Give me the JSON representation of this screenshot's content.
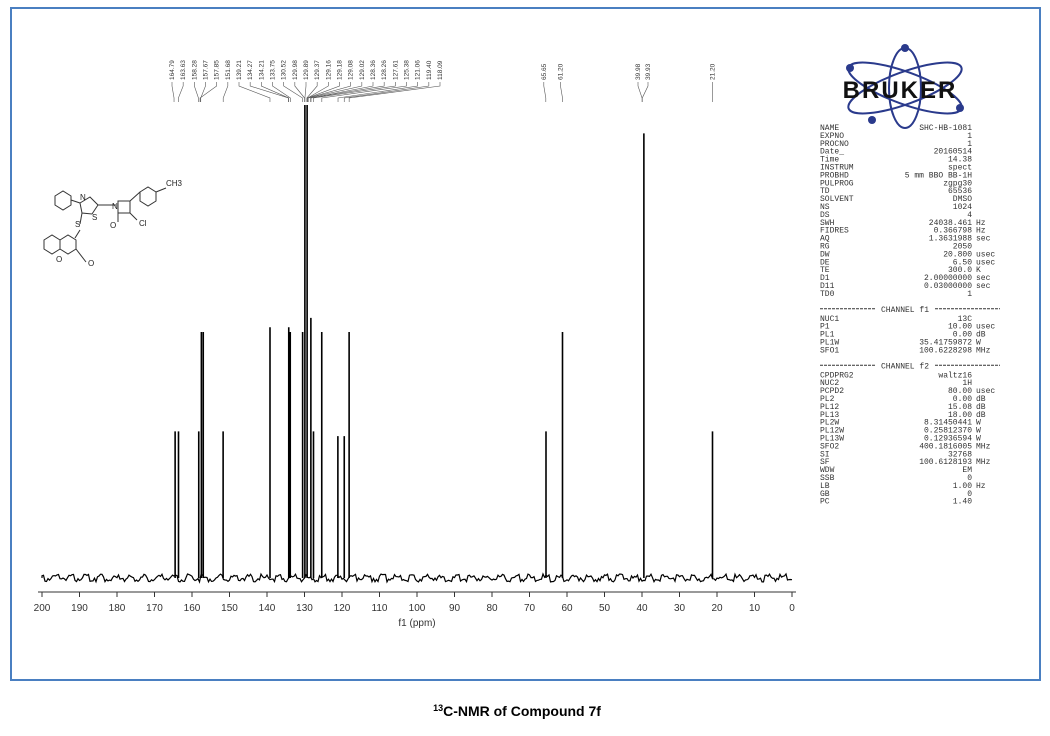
{
  "caption_sup": "13",
  "caption": "C-NMR of Compound 7f",
  "logo": "BRUKER",
  "structure_labels": [
    "N",
    "S",
    "N",
    "O",
    "Cl",
    "CH3",
    "S",
    "O",
    "O"
  ],
  "chart_data": {
    "type": "spectrum",
    "xlabel": "f1 (ppm)",
    "xlim": [
      200,
      0
    ],
    "xticks": [
      200,
      190,
      180,
      170,
      160,
      150,
      140,
      130,
      120,
      110,
      100,
      90,
      80,
      70,
      60,
      50,
      40,
      30,
      20,
      10,
      0
    ],
    "ylim": [
      0,
      100
    ],
    "color": "#000000",
    "x": [
      164.5,
      163.6,
      158.2,
      157.5,
      157.0,
      151.7,
      139.2,
      134.2,
      133.8,
      130.5,
      129.9,
      129.3,
      128.3,
      127.6,
      125.4,
      121.1,
      119.4,
      118.1,
      65.6,
      61.2,
      39.5,
      21.2
    ],
    "values": [
      31,
      31,
      31,
      52,
      52,
      31,
      53,
      53,
      52,
      52,
      100,
      100,
      55,
      31,
      52,
      30,
      30,
      52,
      31,
      52,
      94,
      31
    ],
    "peak_labels": [
      "164.79",
      "163.63",
      "158.28",
      "157.67",
      "157.85",
      "151.68",
      "139.21",
      "134.27",
      "134.21",
      "133.75",
      "130.52",
      "129.98",
      "129.89",
      "129.37",
      "129.16",
      "129.18",
      "129.08",
      "129.02",
      "128.36",
      "128.26",
      "127.61",
      "125.38",
      "121.06",
      "119.40",
      "118.09",
      "65.65",
      "61.20",
      "39.98",
      "39.93",
      "21.20"
    ]
  },
  "parameter_sections": [
    {
      "rows": [
        [
          "NAME",
          "SHC-HB-1081"
        ],
        [
          "EXPNO",
          "1"
        ],
        [
          "PROCNO",
          "1"
        ],
        [
          "Date_",
          "20160514"
        ],
        [
          "Time",
          "14.38"
        ],
        [
          "INSTRUM",
          "spect"
        ],
        [
          "PROBHD",
          "5 mm BBO BB-1H"
        ],
        [
          "PULPROG",
          "zgpg30"
        ],
        [
          "TD",
          "65536"
        ],
        [
          "SOLVENT",
          "DMSO"
        ],
        [
          "NS",
          "1024"
        ],
        [
          "DS",
          "4"
        ],
        [
          "SWH",
          "24038.461",
          "Hz"
        ],
        [
          "FIDRES",
          "0.366798",
          "Hz"
        ],
        [
          "AQ",
          "1.3631988",
          "sec"
        ],
        [
          "RG",
          "2050"
        ],
        [
          "DW",
          "20.800",
          "usec"
        ],
        [
          "DE",
          "6.50",
          "usec"
        ],
        [
          "TE",
          "300.0",
          "K"
        ],
        [
          "D1",
          "2.00000000",
          "sec"
        ],
        [
          "D11",
          "0.03000000",
          "sec"
        ],
        [
          "TD0",
          "1"
        ]
      ]
    },
    {
      "heading": "CHANNEL f1",
      "rows": [
        [
          "NUC1",
          "13C"
        ],
        [
          "P1",
          "10.00",
          "usec"
        ],
        [
          "PL1",
          "0.00",
          "dB"
        ],
        [
          "PL1W",
          "35.41759872",
          "W"
        ],
        [
          "SFO1",
          "100.6228298",
          "MHz"
        ]
      ]
    },
    {
      "heading": "CHANNEL f2",
      "rows": [
        [
          "CPDPRG2",
          "waltz16"
        ],
        [
          "NUC2",
          "1H"
        ],
        [
          "PCPD2",
          "80.00",
          "usec"
        ],
        [
          "PL2",
          "0.00",
          "dB"
        ],
        [
          "PL12",
          "15.08",
          "dB"
        ],
        [
          "PL13",
          "18.00",
          "dB"
        ],
        [
          "PL2W",
          "8.31450441",
          "W"
        ],
        [
          "PL12W",
          "0.25812370",
          "W"
        ],
        [
          "PL13W",
          "0.12936594",
          "W"
        ],
        [
          "SFO2",
          "400.1816005",
          "MHz"
        ],
        [
          "SI",
          "32768"
        ],
        [
          "SF",
          "100.6128193",
          "MHz"
        ],
        [
          "WDW",
          "EM"
        ],
        [
          "SSB",
          "0"
        ],
        [
          "LB",
          "1.00",
          "Hz"
        ],
        [
          "GB",
          "0"
        ],
        [
          "PC",
          "1.40"
        ]
      ]
    }
  ]
}
